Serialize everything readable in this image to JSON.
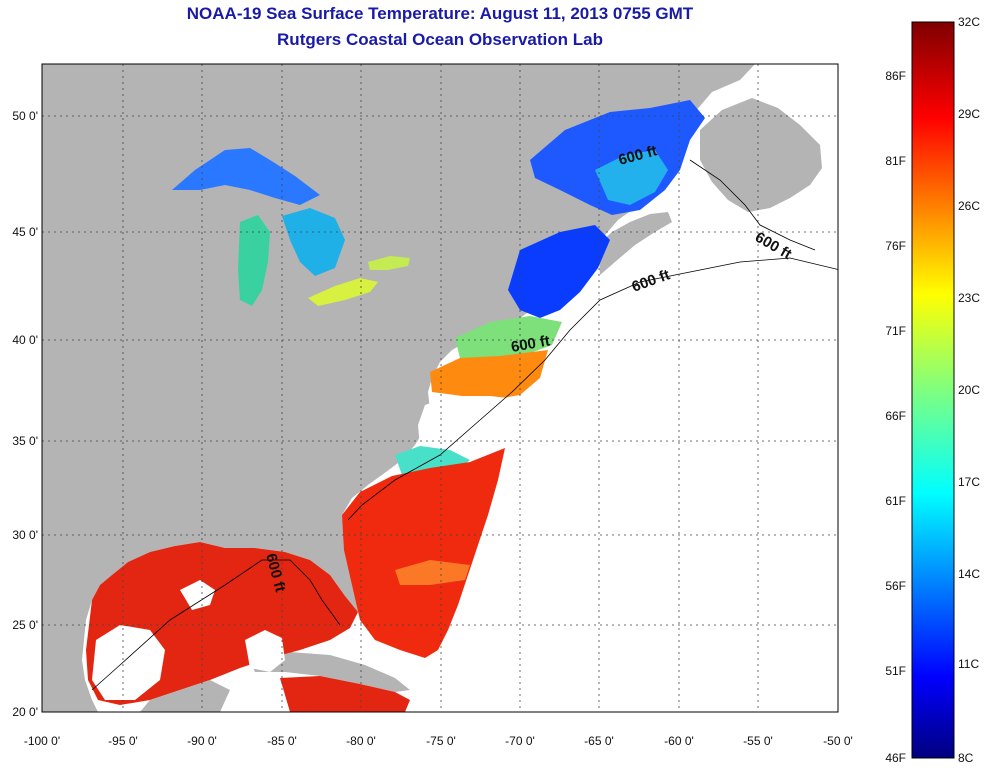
{
  "title": "NOAA-19 Sea Surface Temperature:  August 11, 2013 0755 GMT",
  "subtitle": "Rutgers Coastal Ocean Observation Lab",
  "map": {
    "lon_range": [
      -100,
      -50
    ],
    "lat_range": [
      20,
      52.5
    ],
    "lon_ticks": [
      "-100 0'",
      "-95 0'",
      "-90 0'",
      "-85 0'",
      "-80 0'",
      "-75 0'",
      "-70 0'",
      "-65 0'",
      "-60 0'",
      "-55 0'",
      "-50 0'"
    ],
    "lat_ticks": [
      "20 0'",
      "25 0'",
      "30 0'",
      "35 0'",
      "40 0'",
      "45 0'",
      "50 0'"
    ],
    "isobath_labels": [
      "600 ft",
      "600 ft",
      "600 ft",
      "600 ft",
      "600 ft"
    ],
    "land_color": "#b4b4b4",
    "cloud_color": "#ffffff"
  },
  "colorbar": {
    "celsius": [
      "32C",
      "29C",
      "26C",
      "23C",
      "20C",
      "17C",
      "14C",
      "11C",
      "8C"
    ],
    "fahrenheit": [
      "86F",
      "81F",
      "76F",
      "71F",
      "66F",
      "61F",
      "56F",
      "51F",
      "46F"
    ],
    "colormap": "jet"
  }
}
